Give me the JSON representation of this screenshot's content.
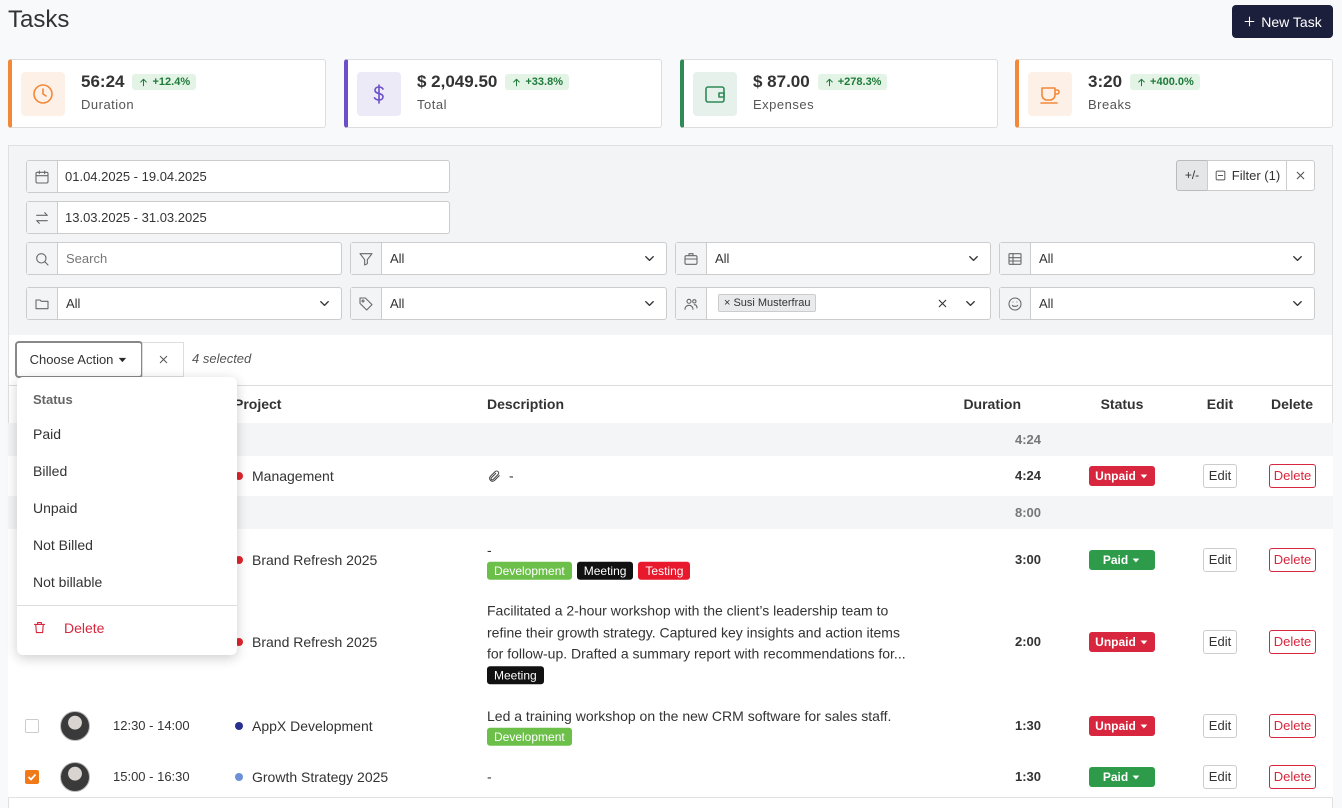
{
  "header": {
    "title": "Tasks",
    "new_task": "New Task"
  },
  "stats": [
    {
      "value": "56:24",
      "change": "+12.4%",
      "label": "Duration",
      "color": "#f2883a"
    },
    {
      "value": "$ 2,049.50",
      "change": "+33.8%",
      "label": "Total",
      "color": "#6b4fc8"
    },
    {
      "value": "$ 87.00",
      "change": "+278.3%",
      "label": "Expenses",
      "color": "#2f8a58"
    },
    {
      "value": "3:20",
      "change": "+400.0%",
      "label": "Breaks",
      "color": "#f2883a"
    }
  ],
  "filters": {
    "date_range": "01.04.2025 - 19.04.2025",
    "compare_range": "13.03.2025 - 31.03.2025",
    "search": "Search",
    "toggle": "+/-",
    "filter_button": "Filter (1)",
    "selects": [
      "All",
      "All",
      "All",
      "All",
      "All",
      "All"
    ],
    "user_chip": "Susi Musterfrau"
  },
  "bulk": {
    "choose_action": "Choose Action",
    "selected": "4 selected"
  },
  "dropdown": {
    "heading": "Status",
    "items": [
      "Paid",
      "Billed",
      "Unpaid",
      "Not Billed",
      "Not billable"
    ],
    "delete": "Delete"
  },
  "table": {
    "columns": [
      "Project",
      "Description",
      "Duration",
      "Status",
      "Edit",
      "Delete"
    ],
    "body": [
      {
        "group_total": "4:24"
      },
      {
        "project": "Management",
        "project_color": "#e0262f",
        "attachment": true,
        "description": "-",
        "tags": [],
        "duration": "4:24",
        "status": "Unpaid",
        "status_color": "#d7263d",
        "edit": "Edit",
        "delete": "Delete"
      },
      {
        "group_total": "8:00"
      },
      {
        "project": "Brand Refresh 2025",
        "project_color": "#e0262f",
        "description": "-",
        "tags": [
          {
            "label": "Development",
            "color": "#6cc04a"
          },
          {
            "label": "Meeting",
            "color": "#111111"
          },
          {
            "label": "Testing",
            "color": "#e8192c"
          }
        ],
        "duration": "3:00",
        "status": "Paid",
        "status_color": "#2e9b4a",
        "edit": "Edit",
        "delete": "Delete"
      },
      {
        "project": "Brand Refresh 2025",
        "project_color": "#e0262f",
        "description": "Facilitated a 2-hour workshop with the client’s leadership team to refine their growth strategy. Captured key insights and action items for follow-up. Drafted a summary report with recommendations for...",
        "tags": [
          {
            "label": "Meeting",
            "color": "#111111"
          }
        ],
        "duration": "2:00",
        "status": "Unpaid",
        "status_color": "#d7263d",
        "edit": "Edit",
        "delete": "Delete"
      },
      {
        "checked": false,
        "time": "12:30 - 14:00",
        "project": "AppX Development",
        "project_color": "#2a2f8f",
        "description": "Led a training workshop on the new CRM software for sales staff.",
        "tags": [
          {
            "label": "Development",
            "color": "#6cc04a"
          }
        ],
        "duration": "1:30",
        "status": "Unpaid",
        "status_color": "#d7263d",
        "edit": "Edit",
        "delete": "Delete"
      },
      {
        "checked": true,
        "time": "15:00 - 16:30",
        "project": "Growth Strategy 2025",
        "project_color": "#6c8fd6",
        "description": "-",
        "tags": [],
        "duration": "1:30",
        "status": "Paid",
        "status_color": "#2e9b4a",
        "edit": "Edit",
        "delete": "Delete"
      }
    ]
  }
}
